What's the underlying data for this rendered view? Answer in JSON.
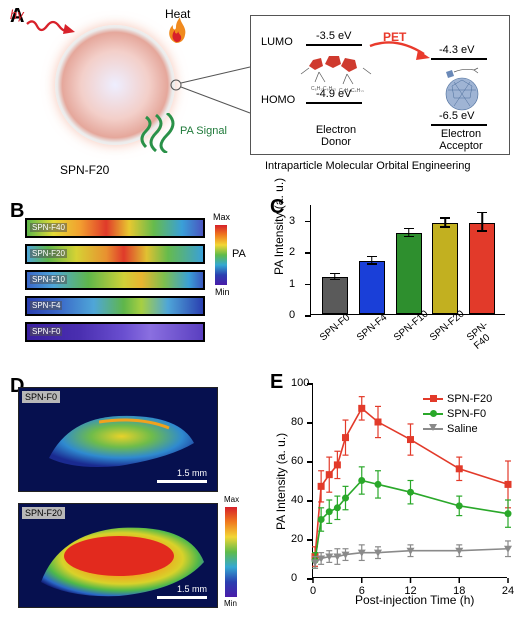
{
  "panelA": {
    "label": "A",
    "hv": "hγ",
    "heat": "Heat",
    "pa_signal": "PA\nSignal",
    "np_label": "SPN-F20",
    "caption": "Intraparticle Molecular Orbital Engineering",
    "orbital": {
      "lumo": "LUMO",
      "homo": "HOMO",
      "donor_lumo_ev": "-3.5 eV",
      "donor_homo_ev": "-4.9 eV",
      "acceptor_lumo_ev": "-4.3 eV",
      "acceptor_homo_ev": "-6.5 eV",
      "donor_label": "Electron\nDonor",
      "acceptor_label": "Electron\nAcceptor",
      "pet_label": "PET"
    },
    "colors": {
      "signal_green": "#2a9148",
      "flame_orange": "#f08a1e",
      "flame_red": "#d8212a",
      "pet_red": "#e93a2c",
      "donor_red": "#cf3a2e",
      "acceptor_blue": "#6a89b8"
    }
  },
  "panelB": {
    "label": "B",
    "rows": [
      {
        "label": "SPN-F40",
        "gradient": "linear-gradient(90deg,#5fb64a 0%,#e3da35 15%,#f2a030 30%,#e03a2a 45%,#e8c830 58%,#66bb4c 72%,#3aa0d8 88%,#4a55c0 100%)"
      },
      {
        "label": "SPN-F20",
        "gradient": "linear-gradient(90deg,#4fa6d8 0%,#5fb64a 12%,#d6d234 28%,#e89130 45%,#e03a2a 55%,#e0c132 68%,#66bb4c 80%,#3aa0d8 100%)"
      },
      {
        "label": "SPN-F10",
        "gradient": "linear-gradient(90deg,#3a68c8 0%,#4fa6d8 15%,#5fb64a 35%,#cfd038 55%,#e8b530 65%,#7dbf4e 78%,#3aa0d8 92%,#3a58c0 100%)"
      },
      {
        "label": "SPN-F4",
        "gradient": "linear-gradient(90deg,#2a3fb0 0%,#3a68c8 18%,#4fa6d8 38%,#5fb64a 55%,#a7cf42 65%,#4fa6d8 80%,#2a3fb0 100%)"
      },
      {
        "label": "SPN-F0",
        "gradient": "linear-gradient(90deg,#3a1fa0 0%,#4a2fb0 30%,#6a4fd0 55%,#8a6fe0 70%,#5a3fc0 100%)"
      }
    ],
    "cbar": {
      "label": "PA",
      "max": "Max",
      "min": "Min",
      "gradient": "linear-gradient(180deg,#d6202a,#f07a1e,#f2d635,#5fbb4a,#35a8d2,#2a3fb0,#4a1caa)"
    }
  },
  "panelC": {
    "label": "C",
    "ylabel": "PA Intensity (a. u.)",
    "ymax": 3.5,
    "yticks": [
      0,
      1,
      2,
      3
    ],
    "bars": [
      {
        "label": "SPN-F0",
        "value": 1.17,
        "err": 0.1,
        "color": "#5a5a5a"
      },
      {
        "label": "SPN-F4",
        "value": 1.69,
        "err": 0.12,
        "color": "#1a3fd8"
      },
      {
        "label": "SPN-F10",
        "value": 2.57,
        "err": 0.12,
        "color": "#2e8f2e"
      },
      {
        "label": "SPN-F20",
        "value": 2.89,
        "err": 0.14,
        "color": "#c2b020"
      },
      {
        "label": "SPN-F40",
        "value": 2.91,
        "err": 0.3,
        "color": "#e23a2a"
      }
    ]
  },
  "panelD": {
    "label": "D",
    "images": [
      {
        "label": "SPN-F0",
        "scale": "1.5 mm",
        "intensity": "low"
      },
      {
        "label": "SPN-F20",
        "scale": "1.5 mm",
        "intensity": "high"
      }
    ],
    "cbar": {
      "max": "Max",
      "min": "Min",
      "gradient": "linear-gradient(180deg,#d6202a,#f07a1e,#f2d635,#5fbb4a,#35a8d2,#2a3fb0,#4a1caa)"
    }
  },
  "panelE": {
    "label": "E",
    "ylabel": "PA Intensity (a. u.)",
    "xlabel": "Post-injection Time (h)",
    "ymax": 100,
    "ymin": 0,
    "yticks": [
      0,
      20,
      40,
      60,
      80,
      100
    ],
    "xmax": 24,
    "xmin": 0,
    "xticks": [
      0,
      6,
      12,
      18,
      24
    ],
    "series": [
      {
        "name": "SPN-F20",
        "marker": "square",
        "color": "#e23a2a",
        "x": [
          0.25,
          1,
          2,
          3,
          4,
          6,
          8,
          12,
          18,
          24
        ],
        "y": [
          11,
          47,
          53,
          58,
          72,
          87,
          80,
          71,
          56,
          48
        ],
        "err": [
          5,
          8,
          9,
          7,
          9,
          6,
          8,
          8,
          6,
          12
        ]
      },
      {
        "name": "SPN-F0",
        "marker": "circle",
        "color": "#2aa82a",
        "x": [
          0.25,
          1,
          2,
          3,
          4,
          6,
          8,
          12,
          18,
          24
        ],
        "y": [
          9,
          30,
          34,
          36,
          41,
          50,
          48,
          44,
          37,
          33
        ],
        "err": [
          4,
          6,
          6,
          6,
          6,
          7,
          7,
          6,
          5,
          7
        ]
      },
      {
        "name": "Saline",
        "marker": "triangle",
        "color": "#8a8a8a",
        "x": [
          0.25,
          1,
          2,
          3,
          4,
          6,
          8,
          12,
          18,
          24
        ],
        "y": [
          8,
          10,
          11,
          11,
          12,
          13,
          13,
          14,
          14,
          15
        ],
        "err": [
          3,
          3,
          3,
          4,
          3,
          4,
          3,
          3,
          3,
          4
        ]
      }
    ]
  }
}
